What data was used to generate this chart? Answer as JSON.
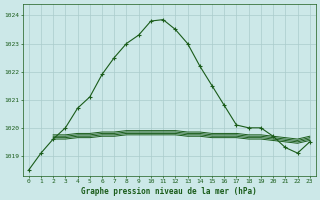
{
  "title": "Graphe pression niveau de la mer (hPa)",
  "background_color": "#cce8e8",
  "grid_color": "#aacccc",
  "line_color": "#1a5c1a",
  "xlim": [
    -0.5,
    23.5
  ],
  "ylim": [
    1018.3,
    1024.4
  ],
  "yticks": [
    1019,
    1020,
    1021,
    1022,
    1023,
    1024
  ],
  "xticks": [
    0,
    1,
    2,
    3,
    4,
    5,
    6,
    7,
    8,
    9,
    10,
    11,
    12,
    13,
    14,
    15,
    16,
    17,
    18,
    19,
    20,
    21,
    22,
    23
  ],
  "main_series": {
    "x": [
      0,
      1,
      2,
      3,
      4,
      5,
      6,
      7,
      8,
      9,
      10,
      11,
      12,
      13,
      14,
      15,
      16,
      17,
      18,
      19,
      20,
      21,
      22,
      23
    ],
    "y": [
      1018.5,
      1019.1,
      1019.6,
      1020.0,
      1020.7,
      1021.1,
      1021.9,
      1022.5,
      1023.0,
      1023.3,
      1023.8,
      1023.85,
      1023.5,
      1023.0,
      1022.2,
      1021.5,
      1020.8,
      1020.1,
      1020.0,
      1020.0,
      1019.7,
      1019.3,
      1019.1,
      1019.5
    ]
  },
  "flat_series": [
    {
      "x": [
        2,
        3,
        4,
        5,
        6,
        7,
        8,
        9,
        10,
        11,
        12,
        13,
        14,
        15,
        16,
        17,
        18,
        19,
        20,
        21,
        22,
        23
      ],
      "y": [
        1019.65,
        1019.65,
        1019.7,
        1019.7,
        1019.75,
        1019.75,
        1019.8,
        1019.8,
        1019.8,
        1019.8,
        1019.8,
        1019.75,
        1019.75,
        1019.7,
        1019.7,
        1019.7,
        1019.65,
        1019.65,
        1019.6,
        1019.55,
        1019.5,
        1019.6
      ]
    },
    {
      "x": [
        2,
        3,
        4,
        5,
        6,
        7,
        8,
        9,
        10,
        11,
        12,
        13,
        14,
        15,
        16,
        17,
        18,
        19,
        20,
        21,
        22,
        23
      ],
      "y": [
        1019.6,
        1019.6,
        1019.65,
        1019.65,
        1019.7,
        1019.7,
        1019.75,
        1019.75,
        1019.75,
        1019.75,
        1019.75,
        1019.7,
        1019.7,
        1019.65,
        1019.65,
        1019.65,
        1019.6,
        1019.6,
        1019.55,
        1019.5,
        1019.45,
        1019.55
      ]
    },
    {
      "x": [
        2,
        3,
        4,
        5,
        6,
        7,
        8,
        9,
        10,
        11,
        12,
        13,
        14,
        15,
        16,
        17,
        18,
        19,
        20,
        21,
        22,
        23
      ],
      "y": [
        1019.7,
        1019.7,
        1019.75,
        1019.75,
        1019.8,
        1019.8,
        1019.85,
        1019.85,
        1019.85,
        1019.85,
        1019.85,
        1019.8,
        1019.8,
        1019.75,
        1019.75,
        1019.75,
        1019.7,
        1019.7,
        1019.65,
        1019.6,
        1019.55,
        1019.65
      ]
    },
    {
      "x": [
        2,
        3,
        4,
        5,
        6,
        7,
        8,
        9,
        10,
        11,
        12,
        13,
        14,
        15,
        16,
        17,
        18,
        19,
        20,
        21,
        22,
        23
      ],
      "y": [
        1019.75,
        1019.75,
        1019.8,
        1019.8,
        1019.85,
        1019.85,
        1019.9,
        1019.9,
        1019.9,
        1019.9,
        1019.9,
        1019.85,
        1019.85,
        1019.8,
        1019.8,
        1019.8,
        1019.75,
        1019.75,
        1019.7,
        1019.65,
        1019.6,
        1019.7
      ]
    }
  ]
}
